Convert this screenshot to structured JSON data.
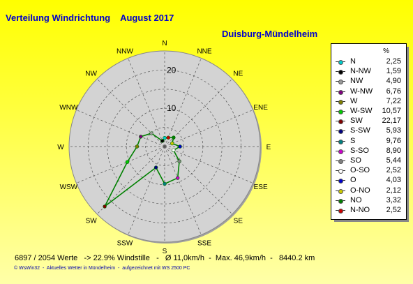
{
  "header": {
    "title": "Verteilung Windrichtung    August 2017",
    "station": "Duisburg-Mündelheim"
  },
  "legend": {
    "unit": "%"
  },
  "stats": "6897 / 2054 Werte   -> 22.9% Windstille   -   Ø 11,0km/h  -  Max. 46,9km/h  -   8440.2 km",
  "footer": "© WsWin32  -  Aktuelles Wetter in Mündelheim  -  aufgezeichnet mit WS 2500 PC",
  "colors": {
    "line": "#008000",
    "ring": "#d3d3d3",
    "text": "#0000cc"
  },
  "chart_data": {
    "type": "radar",
    "rlim": [
      0,
      25
    ],
    "ring_ticks": [
      10,
      20
    ],
    "direction_labels": [
      "N",
      "NNE",
      "NE",
      "ENE",
      "E",
      "ESE",
      "SE",
      "SSE",
      "S",
      "SSW",
      "SW",
      "WSW",
      "W",
      "WNW",
      "NW",
      "NNW"
    ],
    "series": [
      {
        "values": [
          {
            "dir": "N",
            "label": "N",
            "value": 2.25,
            "color": "#00cccc"
          },
          {
            "dir": "NNW",
            "label": "N-NW",
            "value": 1.59,
            "color": "#000000"
          },
          {
            "dir": "NW",
            "label": "NW",
            "value": 4.9,
            "color": "#999999"
          },
          {
            "dir": "WNW",
            "label": "W-NW",
            "value": 6.76,
            "color": "#800080"
          },
          {
            "dir": "W",
            "label": "W",
            "value": 7.22,
            "color": "#808000"
          },
          {
            "dir": "WSW",
            "label": "W-SW",
            "value": 10.57,
            "color": "#00cc00"
          },
          {
            "dir": "SW",
            "label": "SW",
            "value": 22.17,
            "color": "#800000"
          },
          {
            "dir": "SSW",
            "label": "S-SW",
            "value": 5.93,
            "color": "#000080"
          },
          {
            "dir": "S",
            "label": "S",
            "value": 9.76,
            "color": "#008080"
          },
          {
            "dir": "SSE",
            "label": "S-SO",
            "value": 8.9,
            "color": "#cc00cc"
          },
          {
            "dir": "SE",
            "label": "SO",
            "value": 5.44,
            "color": "#808080"
          },
          {
            "dir": "ESE",
            "label": "O-SO",
            "value": 2.52,
            "color": "#ffffff"
          },
          {
            "dir": "E",
            "label": "O",
            "value": 4.03,
            "color": "#0000cc"
          },
          {
            "dir": "ENE",
            "label": "O-NO",
            "value": 2.12,
            "color": "#cccc00"
          },
          {
            "dir": "NE",
            "label": "NO",
            "value": 3.32,
            "color": "#008000"
          },
          {
            "dir": "NNE",
            "label": "N-NO",
            "value": 2.52,
            "color": "#cc0000"
          }
        ]
      }
    ]
  }
}
